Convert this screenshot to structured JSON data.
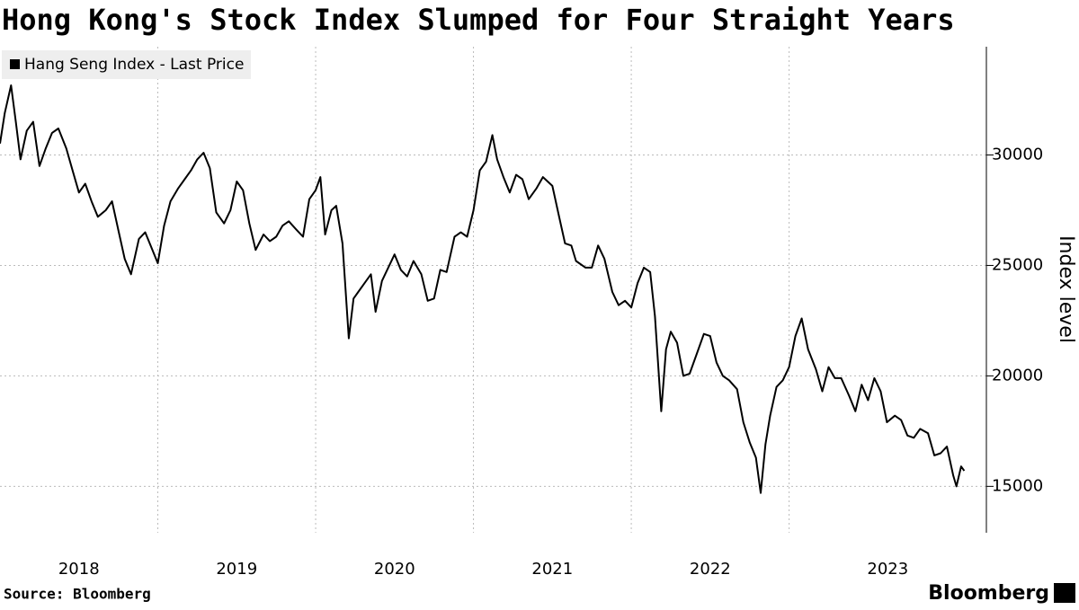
{
  "chart_data": {
    "type": "line",
    "title": "Hong Kong's Stock Index Slumped for Four Straight Years",
    "y_label": "Index level",
    "source": "Source: Bloomberg",
    "brand": "Bloomberg",
    "x": [
      2018.0,
      2018.03,
      2018.07,
      2018.1,
      2018.13,
      2018.17,
      2018.21,
      2018.25,
      2018.29,
      2018.33,
      2018.37,
      2018.42,
      2018.46,
      2018.5,
      2018.54,
      2018.58,
      2018.62,
      2018.67,
      2018.71,
      2018.75,
      2018.79,
      2018.83,
      2018.88,
      2018.92,
      2018.96,
      2019.0,
      2019.04,
      2019.08,
      2019.13,
      2019.17,
      2019.21,
      2019.25,
      2019.29,
      2019.33,
      2019.37,
      2019.42,
      2019.46,
      2019.5,
      2019.54,
      2019.58,
      2019.62,
      2019.67,
      2019.71,
      2019.75,
      2019.79,
      2019.83,
      2019.88,
      2019.92,
      2019.96,
      2020.0,
      2020.03,
      2020.06,
      2020.1,
      2020.13,
      2020.17,
      2020.21,
      2020.24,
      2020.27,
      2020.31,
      2020.35,
      2020.38,
      2020.42,
      2020.46,
      2020.5,
      2020.54,
      2020.58,
      2020.62,
      2020.67,
      2020.71,
      2020.75,
      2020.79,
      2020.83,
      2020.88,
      2020.92,
      2020.96,
      2021.0,
      2021.04,
      2021.08,
      2021.12,
      2021.15,
      2021.19,
      2021.23,
      2021.27,
      2021.31,
      2021.35,
      2021.4,
      2021.44,
      2021.5,
      2021.54,
      2021.58,
      2021.62,
      2021.65,
      2021.71,
      2021.75,
      2021.79,
      2021.83,
      2021.88,
      2021.92,
      2021.96,
      2022.0,
      2022.04,
      2022.08,
      2022.12,
      2022.15,
      2022.19,
      2022.22,
      2022.25,
      2022.29,
      2022.33,
      2022.37,
      2022.42,
      2022.46,
      2022.5,
      2022.54,
      2022.58,
      2022.62,
      2022.67,
      2022.71,
      2022.75,
      2022.79,
      2022.82,
      2022.85,
      2022.88,
      2022.92,
      2022.96,
      2023.0,
      2023.04,
      2023.08,
      2023.12,
      2023.17,
      2023.21,
      2023.25,
      2023.29,
      2023.33,
      2023.38,
      2023.42,
      2023.46,
      2023.5,
      2023.54,
      2023.58,
      2023.62,
      2023.67,
      2023.71,
      2023.75,
      2023.79,
      2023.83,
      2023.88,
      2023.92,
      2023.96,
      2024.0,
      2024.04,
      2024.06,
      2024.09,
      2024.11
    ],
    "series": [
      {
        "name": "Hang Seng Index - Last Price",
        "color": "#000000",
        "values": [
          30515,
          31900,
          33150,
          31500,
          29800,
          31100,
          31500,
          29500,
          30300,
          31000,
          31200,
          30300,
          29300,
          28300,
          28700,
          27900,
          27200,
          27500,
          27900,
          26600,
          25300,
          24600,
          26200,
          26500,
          25800,
          25100,
          26800,
          27900,
          28500,
          28900,
          29300,
          29800,
          30100,
          29400,
          27400,
          26900,
          27500,
          28800,
          28400,
          26900,
          25700,
          26400,
          26100,
          26300,
          26800,
          27000,
          26600,
          26300,
          28000,
          28400,
          29000,
          26400,
          27500,
          27700,
          26000,
          21700,
          23500,
          23800,
          24200,
          24600,
          22900,
          24300,
          24900,
          25500,
          24800,
          24500,
          25200,
          24600,
          23400,
          23500,
          24800,
          24700,
          26300,
          26500,
          26300,
          27500,
          29300,
          29700,
          30900,
          29800,
          29000,
          28300,
          29100,
          28900,
          28000,
          28500,
          29000,
          28600,
          27300,
          26000,
          25900,
          25200,
          24900,
          24900,
          25900,
          25300,
          23800,
          23200,
          23400,
          23100,
          24200,
          24900,
          24700,
          22700,
          18400,
          21200,
          22000,
          21500,
          20000,
          20100,
          21100,
          21900,
          21800,
          20600,
          20000,
          19800,
          19400,
          17900,
          17000,
          16300,
          14700,
          16900,
          18200,
          19500,
          19800,
          20400,
          21800,
          22600,
          21200,
          20300,
          19300,
          20400,
          19900,
          19900,
          19100,
          18400,
          19600,
          18900,
          19900,
          19300,
          17900,
          18200,
          18000,
          17300,
          17200,
          17600,
          17400,
          16400,
          16500,
          16800,
          15500,
          15000,
          15900,
          15700
        ]
      }
    ],
    "xlim": [
      2018,
      2024.25
    ],
    "xticks": [
      2018,
      2019,
      2020,
      2021,
      2022,
      2023
    ],
    "ylim": [
      12900,
      34900
    ],
    "yticks": [
      15000,
      20000,
      25000,
      30000
    ],
    "grid": true,
    "legend": "upper left"
  }
}
